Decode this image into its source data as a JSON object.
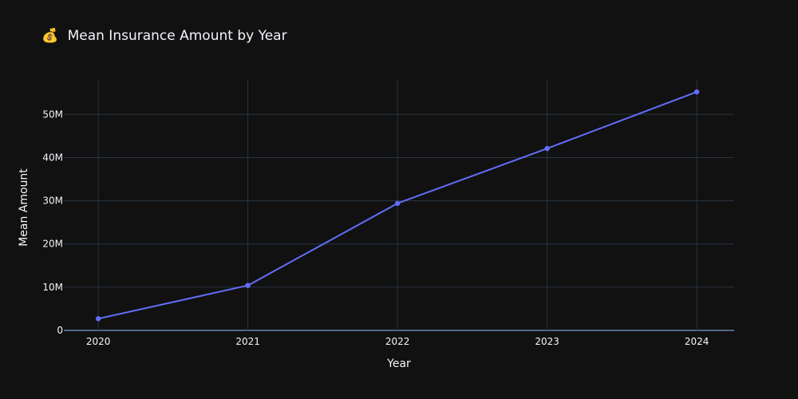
{
  "chart_data": {
    "type": "line",
    "title": "Mean Insurance Amount by Year",
    "title_icon": "money-bag-icon",
    "title_icon_glyph": "💰",
    "xlabel": "Year",
    "ylabel": "Mean Amount",
    "x": [
      2020,
      2021,
      2022,
      2023,
      2024
    ],
    "x_tick_labels": [
      "2020",
      "2021",
      "2022",
      "2023",
      "2024"
    ],
    "xlim": [
      2019.77,
      2024.25
    ],
    "ylim": [
      0,
      58000000
    ],
    "y_ticks": [
      0,
      10000000,
      20000000,
      30000000,
      40000000,
      50000000
    ],
    "y_tick_labels": [
      "0",
      "10M",
      "20M",
      "30M",
      "40M",
      "50M"
    ],
    "series": [
      {
        "name": "Mean Amount",
        "values": [
          2700000,
          10400000,
          29400000,
          42100000,
          55200000
        ],
        "color": "#636efa"
      }
    ],
    "grid": true,
    "colors": {
      "background": "#111111",
      "grid": "#283442",
      "zero_line": "#506784",
      "text": "#f2f5fa"
    }
  }
}
